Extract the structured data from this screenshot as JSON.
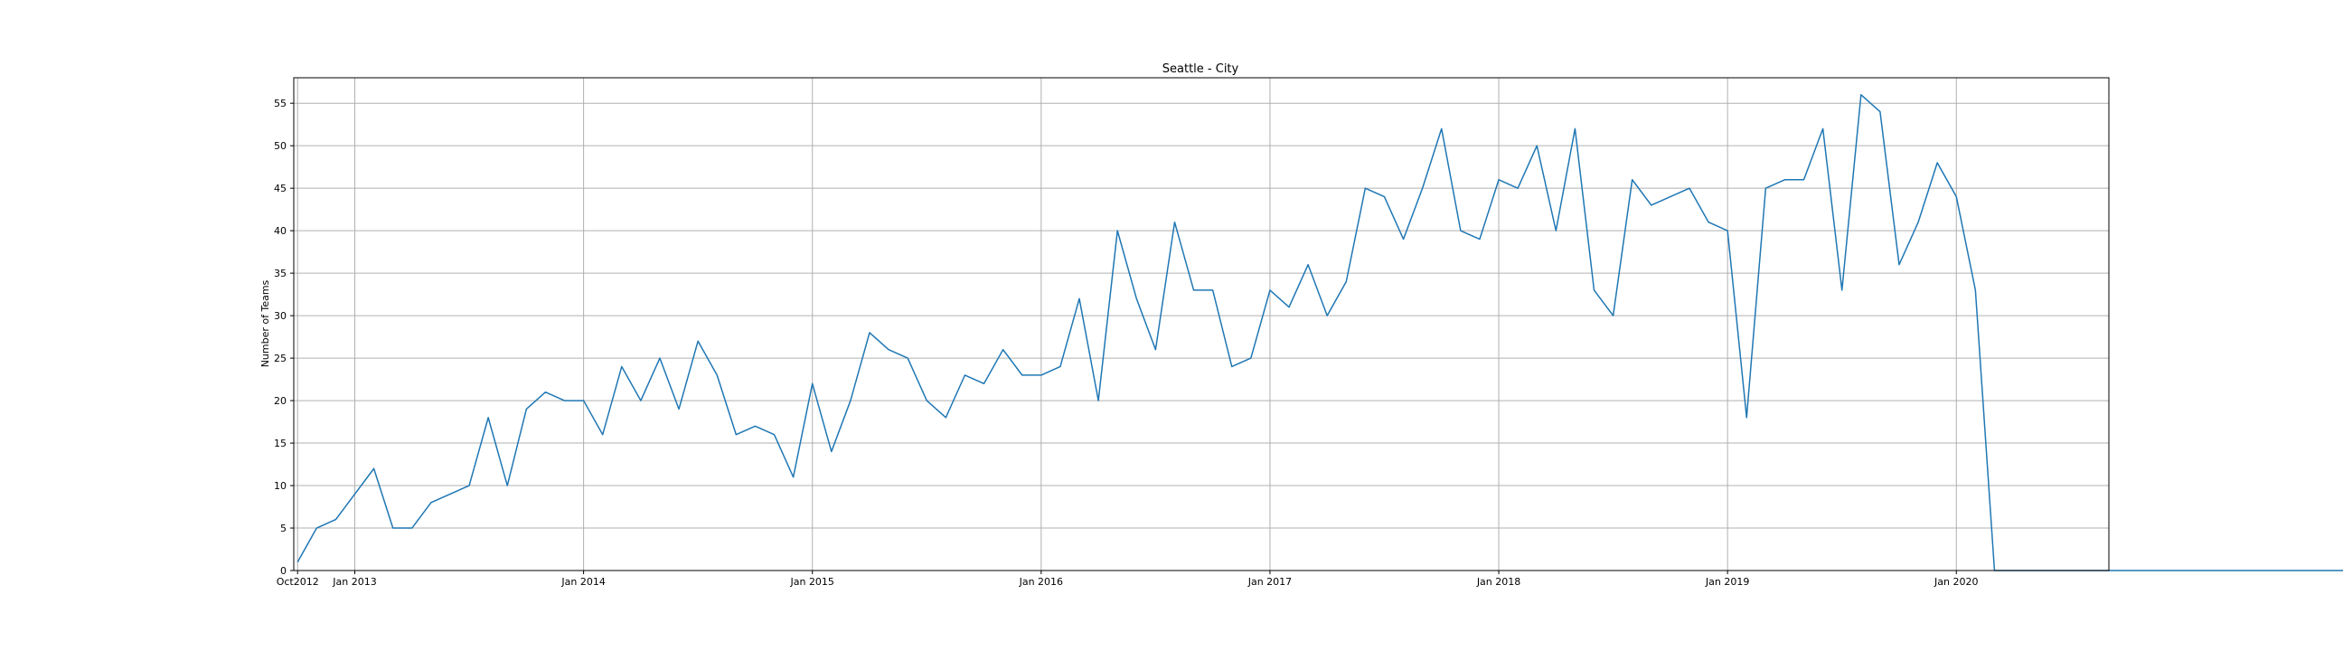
{
  "chart_data": {
    "type": "line",
    "title": "Seattle - City",
    "xlabel": "",
    "ylabel": "Number of Teams",
    "grid": true,
    "legend": "none",
    "colors": {
      "line": "#1f77b4",
      "grid": "#b0b0b0"
    },
    "x_start": "2012-10",
    "x_end": "2020-08",
    "xlim": [
      "2012-10",
      "2020-09"
    ],
    "ylim": [
      0,
      58
    ],
    "x_ticks": [
      {
        "date": "2012-10",
        "label": "Oct2012"
      },
      {
        "date": "2013-01",
        "label": "Jan 2013"
      },
      {
        "date": "2014-01",
        "label": "Jan 2014"
      },
      {
        "date": "2015-01",
        "label": "Jan 2015"
      },
      {
        "date": "2016-01",
        "label": "Jan 2016"
      },
      {
        "date": "2017-01",
        "label": "Jan 2017"
      },
      {
        "date": "2018-01",
        "label": "Jan 2018"
      },
      {
        "date": "2019-01",
        "label": "Jan 2019"
      },
      {
        "date": "2020-01",
        "label": "Jan 2020"
      }
    ],
    "y_ticks": [
      0,
      5,
      10,
      15,
      20,
      25,
      30,
      35,
      40,
      45,
      50,
      55
    ],
    "series": [
      {
        "values": [
          1,
          5,
          6,
          9,
          12,
          5,
          5,
          8,
          9,
          10,
          18,
          10,
          19,
          21,
          20,
          20,
          16,
          24,
          20,
          25,
          19,
          27,
          23,
          16,
          17,
          16,
          11,
          22,
          14,
          20,
          28,
          26,
          25,
          20,
          18,
          23,
          22,
          26,
          23,
          23,
          24,
          32,
          20,
          40,
          32,
          26,
          41,
          33,
          33,
          24,
          25,
          33,
          31,
          36,
          30,
          34,
          45,
          44,
          39,
          45,
          52,
          40,
          39,
          46,
          45,
          50,
          40,
          52,
          33,
          30,
          46,
          43,
          44,
          45,
          41,
          40,
          18,
          45,
          46,
          46,
          52,
          33,
          56,
          54,
          36,
          41,
          48,
          44,
          33,
          0,
          0,
          0,
          0,
          0,
          0,
          0,
          0,
          0,
          0,
          0,
          0,
          0,
          0,
          0,
          0,
          0,
          0,
          0,
          0,
          0,
          0
        ]
      }
    ]
  }
}
